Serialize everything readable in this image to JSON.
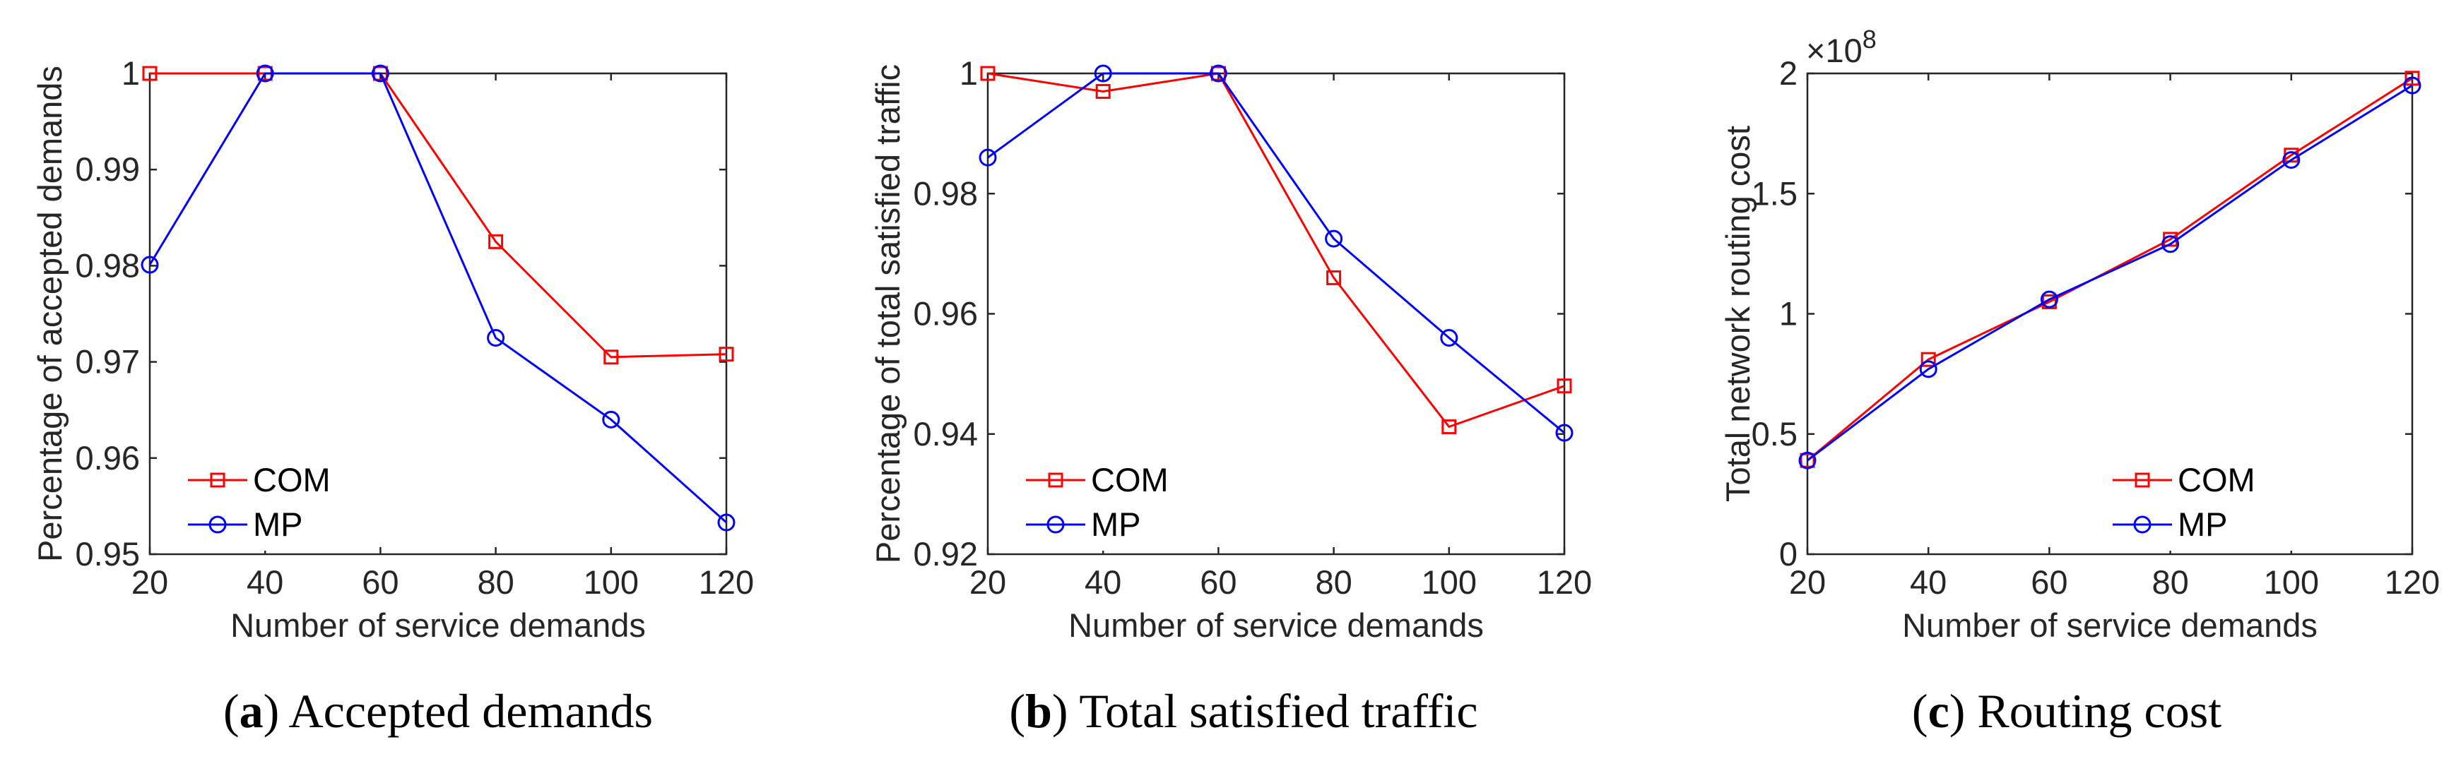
{
  "colors": {
    "COM": "#ff0000",
    "MP": "#0000ff",
    "axis": "#262626"
  },
  "chart_data": [
    {
      "type": "line",
      "x": [
        20,
        40,
        60,
        80,
        100,
        120
      ],
      "series": [
        {
          "name": "COM",
          "marker": "square",
          "values": [
            1.0,
            1.0,
            1.0,
            0.9825,
            0.9705,
            0.9708
          ]
        },
        {
          "name": "MP",
          "marker": "circle",
          "values": [
            0.9801,
            1.0,
            1.0,
            0.9725,
            0.964,
            0.9533
          ]
        }
      ],
      "xlabel": "Number of service demands",
      "ylabel": "Percentage of accepted demands",
      "xlim": [
        20,
        120
      ],
      "ylim": [
        0.95,
        1.0
      ],
      "xticks": [
        20,
        40,
        60,
        80,
        100,
        120
      ],
      "yticks": [
        0.95,
        0.96,
        0.97,
        0.98,
        0.99,
        1
      ],
      "ytick_labels": [
        "0.95",
        "0.96",
        "0.97",
        "0.98",
        "0.99",
        "1"
      ],
      "legend": [
        "COM",
        "MP"
      ],
      "legend_position": "bottom-left",
      "caption_letter": "a",
      "caption_text": "Accepted demands"
    },
    {
      "type": "line",
      "x": [
        20,
        40,
        60,
        80,
        100,
        120
      ],
      "series": [
        {
          "name": "COM",
          "marker": "square",
          "values": [
            1.0,
            0.997,
            1.0,
            0.966,
            0.9412,
            0.948
          ]
        },
        {
          "name": "MP",
          "marker": "circle",
          "values": [
            0.986,
            1.0,
            1.0,
            0.9725,
            0.956,
            0.9402
          ]
        }
      ],
      "xlabel": "Number of service demands",
      "ylabel": "Percentage of total satisfied traffic",
      "xlim": [
        20,
        120
      ],
      "ylim": [
        0.92,
        1.0
      ],
      "xticks": [
        20,
        40,
        60,
        80,
        100,
        120
      ],
      "yticks": [
        0.92,
        0.94,
        0.96,
        0.98,
        1
      ],
      "ytick_labels": [
        "0.92",
        "0.94",
        "0.96",
        "0.98",
        "1"
      ],
      "legend": [
        "COM",
        "MP"
      ],
      "legend_position": "bottom-left",
      "caption_letter": "b",
      "caption_text": "Total satisfied traffic"
    },
    {
      "type": "line",
      "x": [
        20,
        40,
        60,
        80,
        100,
        120
      ],
      "series": [
        {
          "name": "COM",
          "marker": "square",
          "values": [
            0.39,
            0.81,
            1.05,
            1.31,
            1.66,
            1.98
          ]
        },
        {
          "name": "MP",
          "marker": "circle",
          "values": [
            0.39,
            0.77,
            1.06,
            1.29,
            1.64,
            1.95
          ]
        }
      ],
      "xlabel": "Number of service demands",
      "ylabel": "Total network routing cost",
      "xlim": [
        20,
        120
      ],
      "ylim": [
        0,
        2
      ],
      "xticks": [
        20,
        40,
        60,
        80,
        100,
        120
      ],
      "yticks": [
        0,
        0.5,
        1,
        1.5,
        2
      ],
      "ytick_labels": [
        "0",
        "0.5",
        "1",
        "1.5",
        "2"
      ],
      "y_multiplier_base": "×10",
      "y_multiplier_exp": "8",
      "legend": [
        "COM",
        "MP"
      ],
      "legend_position": "bottom-right",
      "caption_letter": "c",
      "caption_text": "Routing cost"
    }
  ]
}
